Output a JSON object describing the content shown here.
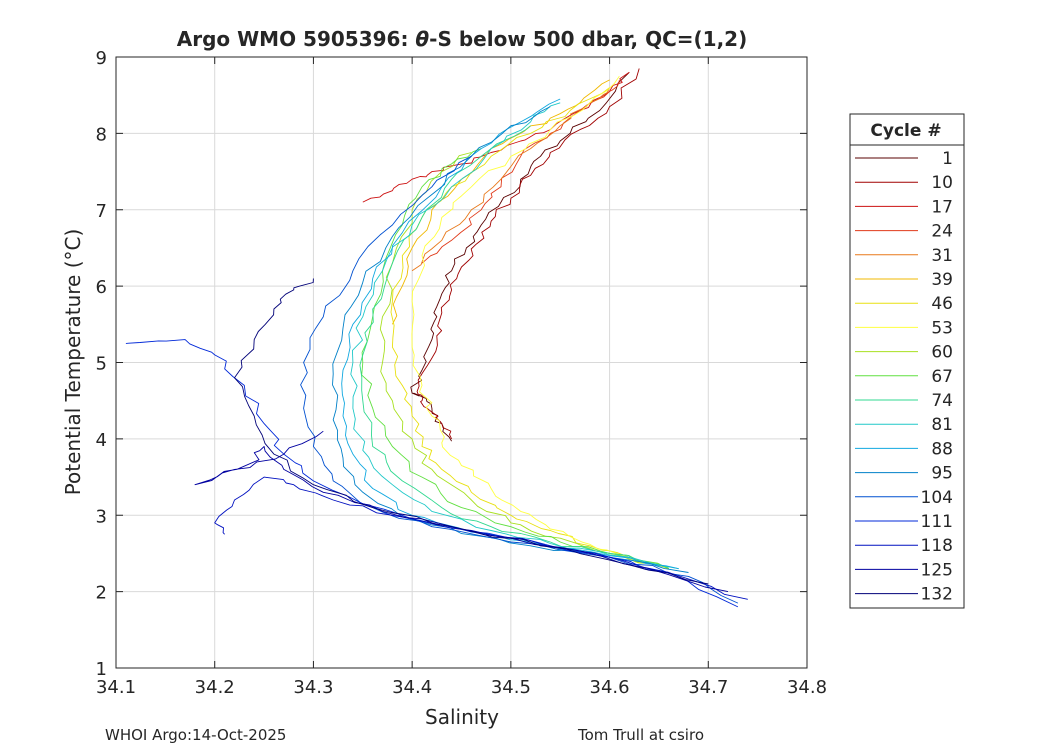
{
  "chart_data": {
    "type": "line",
    "title_prefix": "Argo WMO 5905396: ",
    "title_theta": "θ",
    "title_suffix": "-S below 500 dbar,  QC=(1,2)",
    "xlabel": "Salinity",
    "ylabel": "Potential Temperature (°C)",
    "xlim": [
      34.1,
      34.8
    ],
    "ylim": [
      1,
      9
    ],
    "xticks": [
      34.1,
      34.2,
      34.3,
      34.4,
      34.5,
      34.6,
      34.7,
      34.8
    ],
    "xtick_labels": [
      "34.1",
      "34.2",
      "34.3",
      "34.4",
      "34.5",
      "34.6",
      "34.7",
      "34.8"
    ],
    "yticks": [
      1,
      2,
      3,
      4,
      5,
      6,
      7,
      8,
      9
    ],
    "ytick_labels": [
      "1",
      "2",
      "3",
      "4",
      "5",
      "6",
      "7",
      "8",
      "9"
    ],
    "grid": true,
    "legend": {
      "title": "Cycle #",
      "placement": "right-outside",
      "entries": [
        "1",
        "10",
        "17",
        "24",
        "31",
        "39",
        "46",
        "53",
        "60",
        "67",
        "74",
        "81",
        "88",
        "95",
        "104",
        "111",
        "118",
        "125",
        "132"
      ],
      "colors": [
        "#5a0000",
        "#a00000",
        "#cc1010",
        "#e03a1a",
        "#e8781a",
        "#f0b800",
        "#e8e010",
        "#ffff40",
        "#a8e020",
        "#60e040",
        "#30d890",
        "#20c8c8",
        "#10a8e0",
        "#0080c8",
        "#0050d0",
        "#0028d8",
        "#0010c0",
        "#0000a0",
        "#000078"
      ]
    },
    "series": [
      {
        "name": "1",
        "color": "#5a0000",
        "s": [
          34.44,
          34.43,
          34.42,
          34.41,
          34.4,
          34.41,
          34.42,
          34.425,
          34.43,
          34.44,
          34.455,
          34.47,
          34.49,
          34.51,
          34.53,
          34.56,
          34.59,
          34.62
        ],
        "t": [
          3.97,
          4.2,
          4.4,
          4.55,
          4.6,
          4.9,
          5.3,
          5.6,
          5.9,
          6.2,
          6.5,
          6.8,
          7.1,
          7.4,
          7.7,
          8.0,
          8.3,
          8.8
        ]
      },
      {
        "name": "10",
        "color": "#a00000",
        "s": [
          34.44,
          34.43,
          34.42,
          34.41,
          34.405,
          34.415,
          34.425,
          34.43,
          34.44,
          34.45,
          34.465,
          34.48,
          34.5,
          34.52,
          34.54,
          34.57,
          34.6,
          34.63
        ],
        "t": [
          4.0,
          4.2,
          4.35,
          4.5,
          4.62,
          4.95,
          5.35,
          5.65,
          5.95,
          6.25,
          6.55,
          6.85,
          7.15,
          7.45,
          7.75,
          8.05,
          8.35,
          8.85
        ]
      },
      {
        "name": "17",
        "color": "#cc1010",
        "s": [
          34.35,
          34.38,
          34.4,
          34.42,
          34.45,
          34.48,
          34.51,
          34.54,
          34.57,
          34.6,
          34.62
        ],
        "t": [
          7.1,
          7.25,
          7.4,
          7.5,
          7.6,
          7.75,
          7.9,
          8.05,
          8.3,
          8.55,
          8.8
        ]
      },
      {
        "name": "24",
        "color": "#e03a1a",
        "s": [
          34.41,
          34.44,
          34.47,
          34.49,
          34.51,
          34.54,
          34.57,
          34.6,
          34.61
        ],
        "t": [
          6.3,
          6.6,
          7.0,
          7.3,
          7.7,
          8.0,
          8.3,
          8.55,
          8.7
        ]
      },
      {
        "name": "31",
        "color": "#e8781a",
        "s": [
          34.4,
          34.43,
          34.46,
          34.49,
          34.52,
          34.55,
          34.58,
          34.6
        ],
        "t": [
          6.2,
          6.6,
          7.0,
          7.4,
          7.8,
          8.1,
          8.4,
          8.6
        ]
      },
      {
        "name": "39",
        "color": "#f0b800",
        "s": [
          34.38,
          34.39,
          34.4,
          34.42,
          34.45,
          34.48,
          34.51,
          34.54,
          34.57,
          34.6
        ],
        "t": [
          5.5,
          6.0,
          6.5,
          7.0,
          7.4,
          7.8,
          8.0,
          8.2,
          8.4,
          8.7
        ]
      },
      {
        "name": "46",
        "color": "#e8e010",
        "s": [
          34.66,
          34.62,
          34.58,
          34.54,
          34.5,
          34.46,
          34.43,
          34.41,
          34.4,
          34.39,
          34.38,
          34.38,
          34.39,
          34.41,
          34.44,
          34.48,
          34.52,
          34.56,
          34.6
        ],
        "t": [
          2.3,
          2.45,
          2.6,
          2.8,
          3.0,
          3.3,
          3.6,
          3.9,
          4.3,
          4.7,
          5.2,
          5.8,
          6.4,
          6.9,
          7.3,
          7.7,
          8.0,
          8.3,
          8.6
        ]
      },
      {
        "name": "53",
        "color": "#ffff40",
        "s": [
          34.66,
          34.62,
          34.58,
          34.54,
          34.51,
          34.48,
          34.45,
          34.43,
          34.42,
          34.41,
          34.4,
          34.4,
          34.41,
          34.43,
          34.46,
          34.5,
          34.54,
          34.58,
          34.61
        ],
        "t": [
          2.3,
          2.45,
          2.62,
          2.82,
          3.05,
          3.35,
          3.65,
          3.95,
          4.3,
          4.7,
          5.2,
          5.8,
          6.4,
          6.9,
          7.3,
          7.7,
          8.05,
          8.4,
          8.75
        ]
      },
      {
        "name": "60",
        "color": "#a8e020",
        "s": [
          34.66,
          34.6,
          34.55,
          34.5,
          34.46,
          34.42,
          34.4,
          34.38,
          34.37,
          34.37,
          34.38,
          34.4,
          34.43,
          34.46
        ],
        "t": [
          2.3,
          2.5,
          2.7,
          2.9,
          3.2,
          3.6,
          4.0,
          4.5,
          5.0,
          5.6,
          6.3,
          7.0,
          7.5,
          7.75
        ]
      },
      {
        "name": "67",
        "color": "#60e040",
        "s": [
          34.66,
          34.6,
          34.55,
          34.5,
          34.45,
          34.41,
          34.38,
          34.36,
          34.35,
          34.36,
          34.37,
          34.39,
          34.41,
          34.44,
          34.47
        ],
        "t": [
          2.3,
          2.5,
          2.65,
          2.85,
          3.1,
          3.5,
          3.9,
          4.4,
          5.0,
          5.6,
          6.2,
          6.8,
          7.3,
          7.6,
          7.8
        ]
      },
      {
        "name": "74",
        "color": "#30d890",
        "s": [
          34.66,
          34.6,
          34.54,
          34.48,
          34.43,
          34.39,
          34.36,
          34.35,
          34.35,
          34.36,
          34.38,
          34.41,
          34.44,
          34.48,
          34.52
        ],
        "t": [
          2.32,
          2.5,
          2.65,
          2.85,
          3.1,
          3.45,
          3.9,
          4.5,
          5.1,
          5.7,
          6.3,
          6.9,
          7.4,
          7.8,
          8.1
        ]
      },
      {
        "name": "81",
        "color": "#20c8c8",
        "s": [
          34.67,
          34.6,
          34.54,
          34.48,
          34.42,
          34.38,
          34.35,
          34.34,
          34.34,
          34.35,
          34.37,
          34.4,
          34.44,
          34.48,
          34.52,
          34.55
        ],
        "t": [
          2.3,
          2.48,
          2.63,
          2.8,
          3.05,
          3.4,
          3.85,
          4.4,
          5.0,
          5.6,
          6.2,
          6.8,
          7.3,
          7.8,
          8.15,
          8.4
        ]
      },
      {
        "name": "88",
        "color": "#10a8e0",
        "s": [
          34.67,
          34.6,
          34.53,
          34.46,
          34.4,
          34.36,
          34.34,
          34.33,
          34.33,
          34.34,
          34.36,
          34.39,
          34.43,
          34.47,
          34.51,
          34.55
        ],
        "t": [
          2.3,
          2.47,
          2.62,
          2.78,
          3.0,
          3.35,
          3.8,
          4.3,
          4.9,
          5.5,
          6.1,
          6.7,
          7.3,
          7.8,
          8.15,
          8.45
        ]
      },
      {
        "name": "95",
        "color": "#0080c8",
        "s": [
          34.68,
          34.6,
          34.52,
          34.45,
          34.39,
          34.35,
          34.33,
          34.32,
          34.32,
          34.33,
          34.35,
          34.38,
          34.42,
          34.46,
          34.5,
          34.54
        ],
        "t": [
          2.25,
          2.45,
          2.6,
          2.76,
          2.98,
          3.3,
          3.75,
          4.25,
          4.85,
          5.45,
          6.05,
          6.65,
          7.2,
          7.7,
          8.1,
          8.35
        ]
      },
      {
        "name": "104",
        "color": "#0050d0",
        "s": [
          34.73,
          34.68,
          34.6,
          34.5,
          34.42,
          34.36,
          34.32,
          34.3,
          34.29,
          34.29,
          34.31,
          34.34,
          34.38,
          34.42,
          34.46
        ],
        "t": [
          1.85,
          2.2,
          2.45,
          2.65,
          2.85,
          3.1,
          3.45,
          3.9,
          4.4,
          5.0,
          5.6,
          6.2,
          6.8,
          7.3,
          7.7
        ]
      },
      {
        "name": "111",
        "color": "#0028d8",
        "s": [
          34.73,
          34.66,
          34.58,
          34.5,
          34.42,
          34.35,
          34.3,
          34.27,
          34.25,
          34.23,
          34.2,
          34.17,
          34.11
        ],
        "t": [
          1.8,
          2.25,
          2.5,
          2.7,
          2.9,
          3.15,
          3.45,
          3.8,
          4.2,
          4.7,
          5.1,
          5.3,
          5.25
        ]
      },
      {
        "name": "118",
        "color": "#0010c0",
        "s": [
          34.74,
          34.66,
          34.56,
          34.46,
          34.38,
          34.32,
          34.28,
          34.25,
          34.22,
          34.2,
          34.21
        ],
        "t": [
          1.9,
          2.25,
          2.55,
          2.8,
          3.0,
          3.2,
          3.4,
          3.5,
          3.2,
          2.9,
          2.75
        ]
      },
      {
        "name": "125",
        "color": "#0000a0",
        "s": [
          34.72,
          34.64,
          34.55,
          34.45,
          34.37,
          34.31,
          34.27,
          34.25,
          34.24,
          34.18,
          34.22,
          34.27,
          34.31
        ],
        "t": [
          2.0,
          2.3,
          2.58,
          2.82,
          3.05,
          3.3,
          3.6,
          3.9,
          3.7,
          3.4,
          3.6,
          3.8,
          4.1
        ]
      },
      {
        "name": "132",
        "color": "#000078",
        "s": [
          34.7,
          34.62,
          34.53,
          34.44,
          34.36,
          34.3,
          34.26,
          34.24,
          34.22,
          34.24,
          34.26,
          34.28,
          34.3
        ],
        "t": [
          2.1,
          2.35,
          2.6,
          2.85,
          3.1,
          3.4,
          3.8,
          4.3,
          4.8,
          5.3,
          5.7,
          5.95,
          6.1
        ]
      }
    ]
  },
  "footer": {
    "left": "WHOI Argo:14-Oct-2025",
    "right": "Tom Trull at csiro"
  }
}
